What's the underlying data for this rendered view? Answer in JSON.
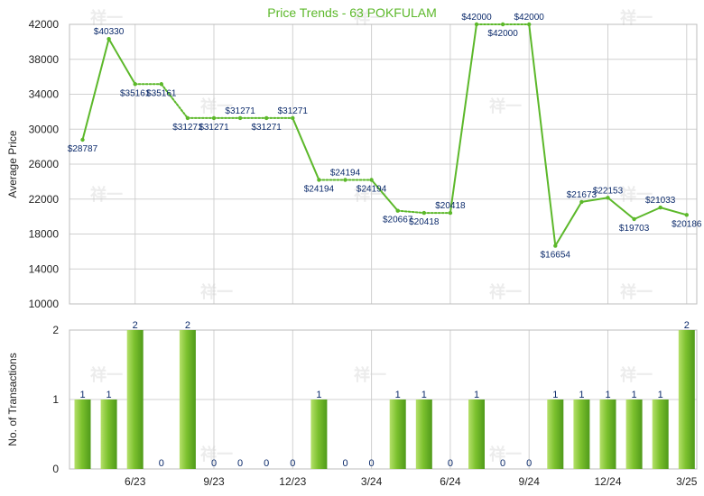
{
  "chart_data": [
    {
      "type": "line",
      "title": "Price Trends - 63 POKFULAM",
      "ylabel": "Average Price",
      "ylim": [
        10000,
        42000
      ],
      "yticks": [
        10000,
        14000,
        18000,
        22000,
        26000,
        30000,
        34000,
        38000,
        42000
      ],
      "grid": true,
      "series": [
        {
          "values": [
            28787,
            40330,
            35161,
            35161,
            31271,
            31271,
            31271,
            31271,
            31271,
            24194,
            24194,
            24194,
            20667,
            20418,
            20418,
            42000,
            42000,
            42000,
            16654,
            21673,
            22153,
            19703,
            21033,
            20186
          ],
          "labels": [
            "$28787",
            "$40330",
            "$35161",
            "$35161",
            "$31271",
            "$31271",
            "$31271",
            "$31271",
            "$31271",
            "$24194",
            "$24194",
            "$24194",
            "$20667",
            "$20418",
            "$20418",
            "$42000",
            "$42000",
            "$42000",
            "$16654",
            "$21673",
            "$22153",
            "$19703",
            "$21033",
            "$20186"
          ],
          "interpolated": [
            false,
            false,
            false,
            true,
            false,
            true,
            true,
            true,
            false,
            false,
            true,
            false,
            false,
            true,
            false,
            false,
            true,
            false,
            false,
            false,
            false,
            false,
            false,
            false
          ],
          "color": "#5cb82a"
        }
      ]
    },
    {
      "type": "bar",
      "ylabel": "No. of Transactions",
      "ylim": [
        0,
        2
      ],
      "yticks": [
        0,
        1,
        2
      ],
      "grid": true,
      "series": [
        {
          "values": [
            1,
            1,
            2,
            0,
            2,
            0,
            0,
            0,
            0,
            1,
            0,
            0,
            1,
            1,
            0,
            1,
            0,
            0,
            1,
            1,
            1,
            1,
            1,
            2
          ],
          "color": "#7cc12e"
        }
      ]
    }
  ],
  "x_axis": {
    "tick_labels": [
      "6/23",
      "9/23",
      "12/23",
      "3/24",
      "6/24",
      "9/24",
      "12/24",
      "3/25"
    ],
    "tick_indices": [
      2,
      5,
      8,
      11,
      14,
      17,
      20,
      23
    ]
  },
  "colors": {
    "title": "#5cb82a",
    "line": "#5cb82a",
    "bar_light": "#b5e06a",
    "bar_mid": "#7cc12e",
    "bar_dark": "#4f9a1a",
    "label": "#0b2a6b",
    "grid": "#d0d0d0",
    "axis_text": "#222222",
    "watermark": "#ececec"
  },
  "watermark": "祥一"
}
